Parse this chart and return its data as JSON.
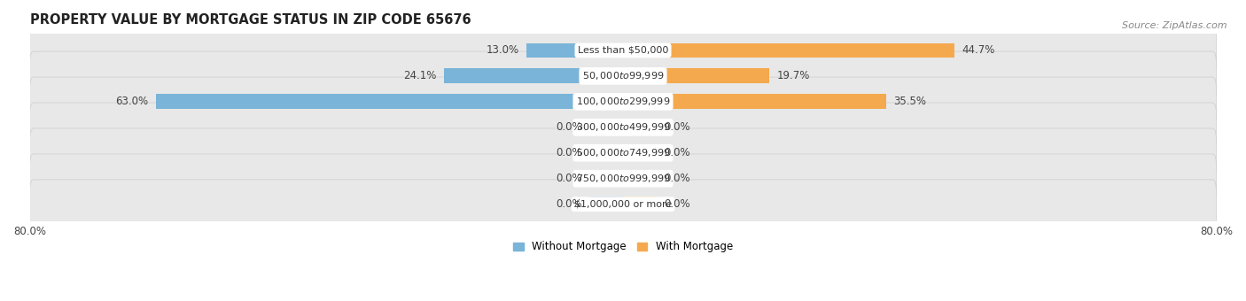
{
  "title": "PROPERTY VALUE BY MORTGAGE STATUS IN ZIP CODE 65676",
  "source": "Source: ZipAtlas.com",
  "categories": [
    "Less than $50,000",
    "$50,000 to $99,999",
    "$100,000 to $299,999",
    "$300,000 to $499,999",
    "$500,000 to $749,999",
    "$750,000 to $999,999",
    "$1,000,000 or more"
  ],
  "without_mortgage": [
    13.0,
    24.1,
    63.0,
    0.0,
    0.0,
    0.0,
    0.0
  ],
  "with_mortgage": [
    44.7,
    19.7,
    35.5,
    0.0,
    0.0,
    0.0,
    0.0
  ],
  "color_without": "#7ab4d8",
  "color_with": "#f5a94e",
  "color_without_zero": "#aac8e0",
  "color_with_zero": "#f5d0a0",
  "xlim": [
    -80,
    80
  ],
  "background_row": "#e8e8e8",
  "background_row_alt": "#efefef",
  "background_fig": "#ffffff",
  "legend_without": "Without Mortgage",
  "legend_with": "With Mortgage",
  "title_fontsize": 10.5,
  "source_fontsize": 8,
  "zero_stub": 4.5,
  "label_fontsize": 8.5,
  "cat_fontsize": 8.0
}
